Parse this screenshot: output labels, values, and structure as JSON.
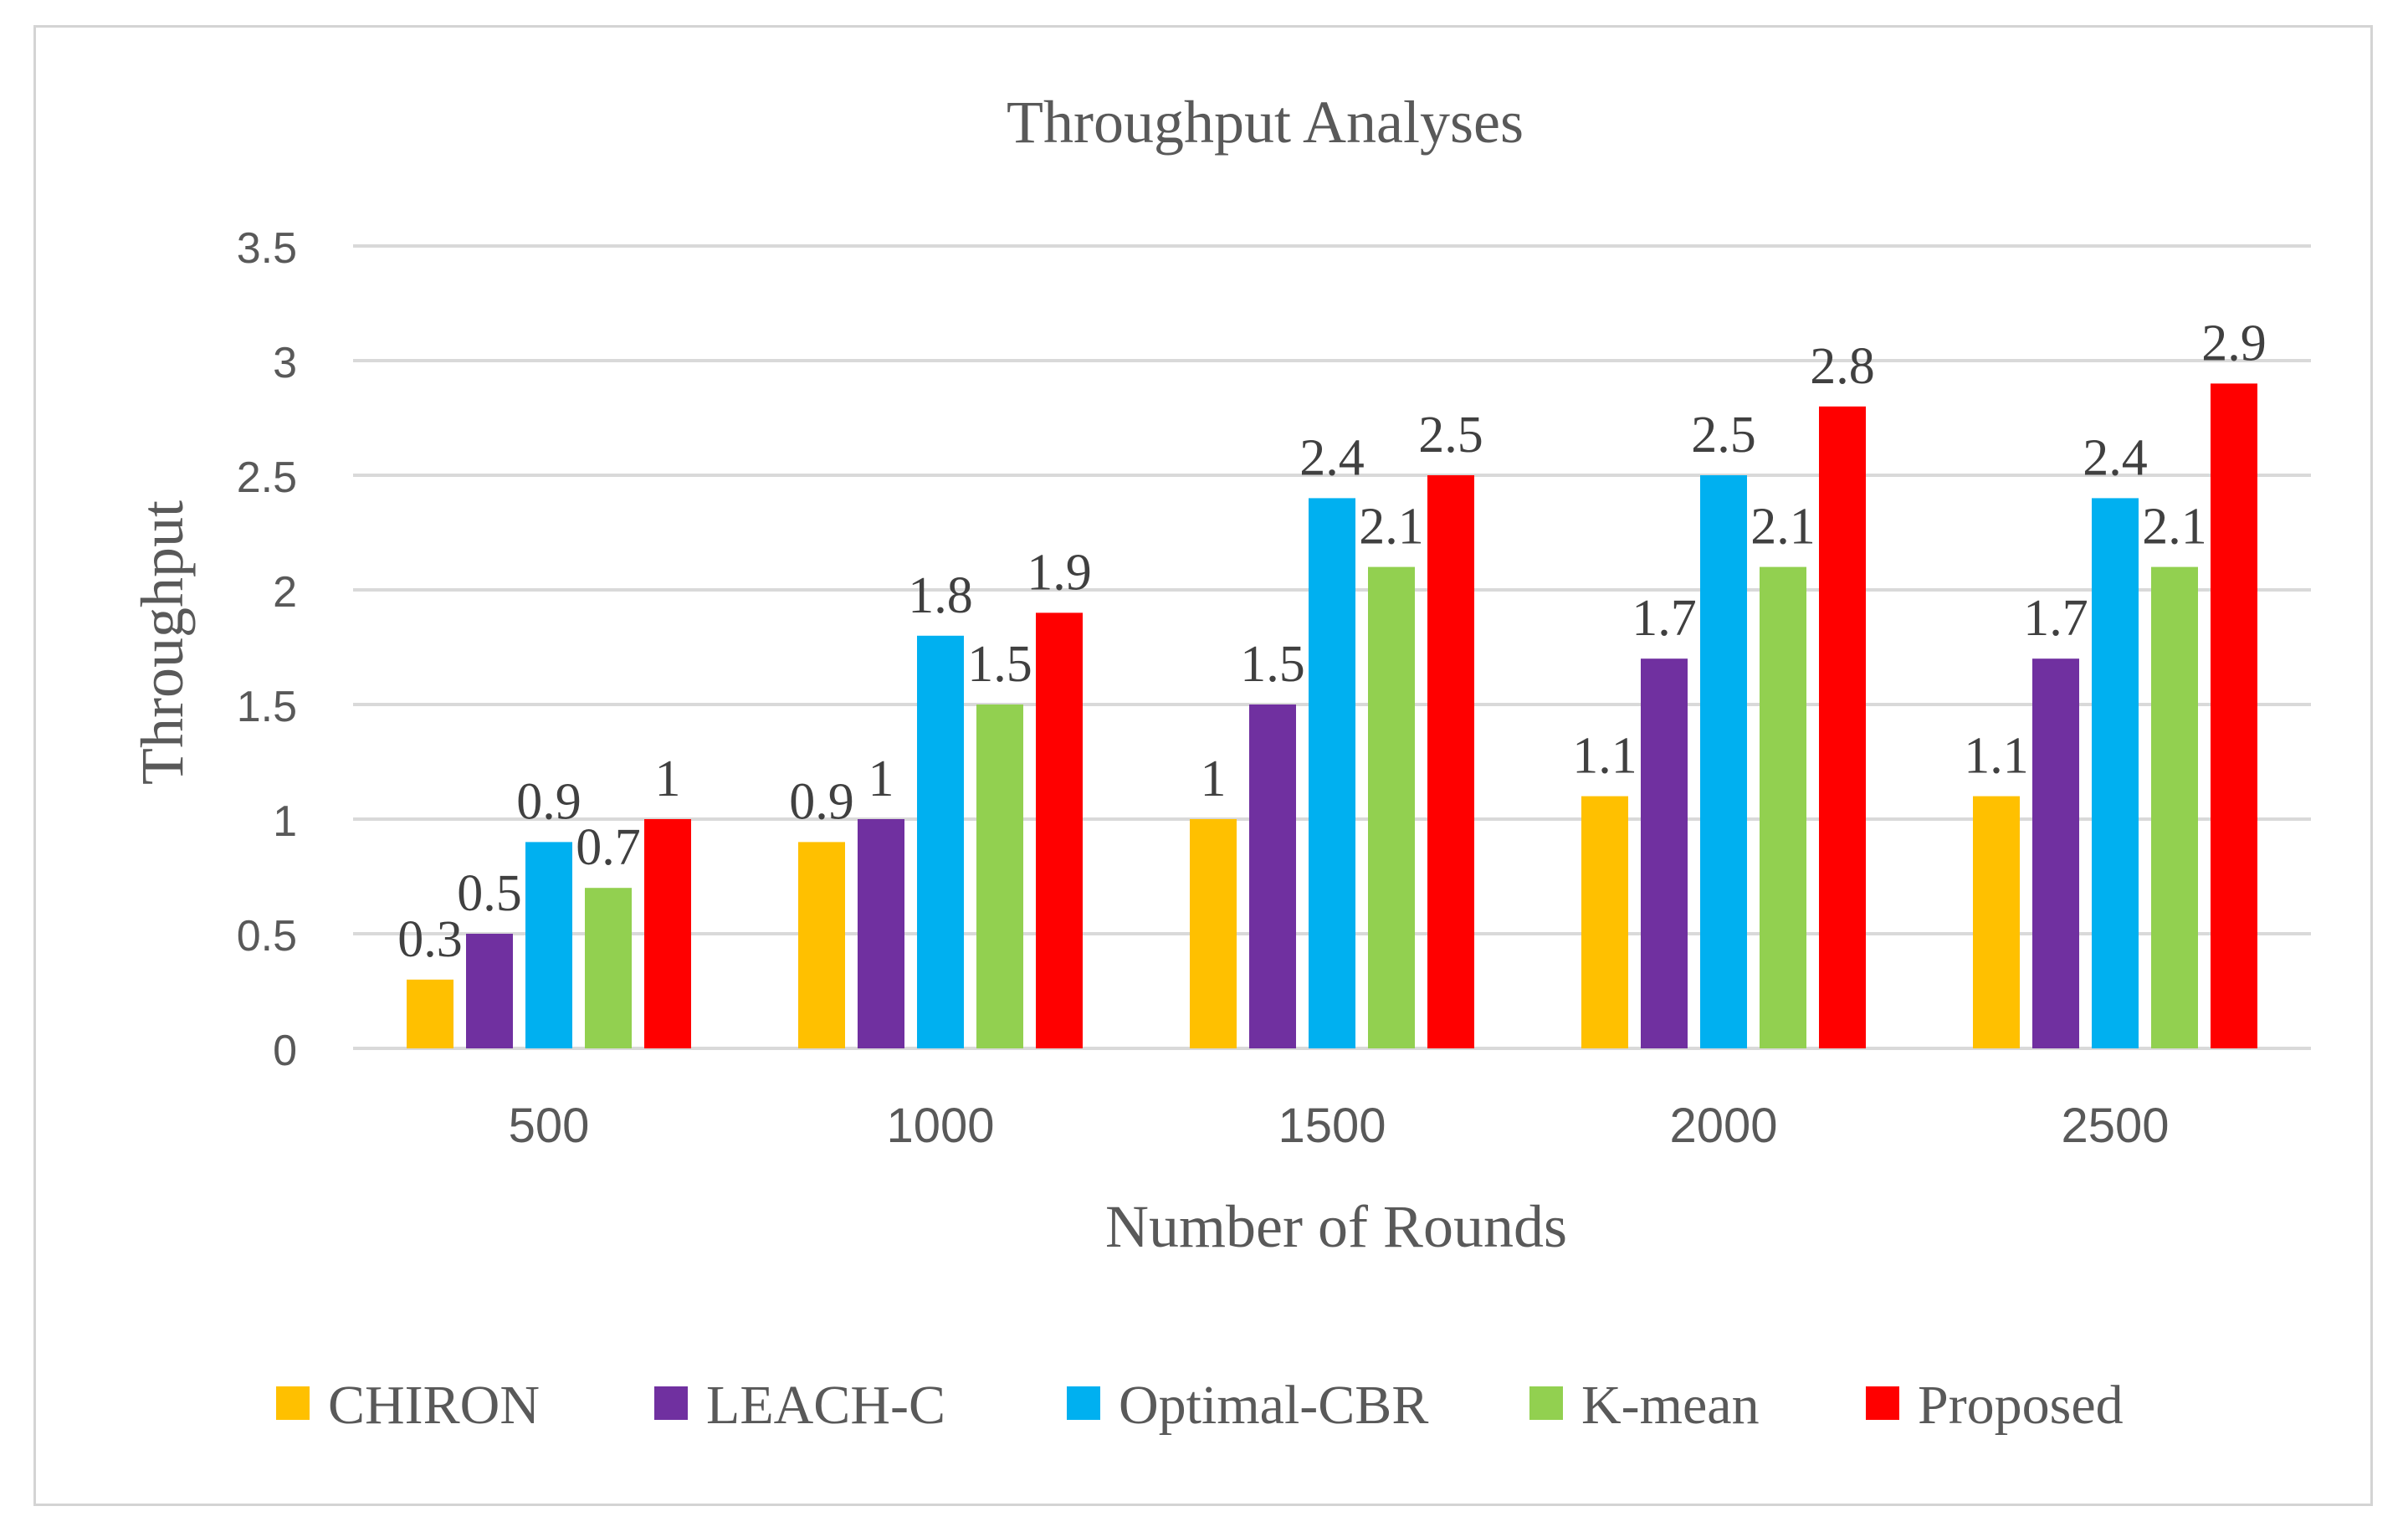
{
  "chart_data": {
    "type": "bar",
    "title": "Throughput Analyses",
    "xlabel": "Number of Rounds",
    "ylabel": "Throughput",
    "categories": [
      "500",
      "1000",
      "1500",
      "2000",
      "2500"
    ],
    "ylim": [
      0,
      3.5
    ],
    "yticks": [
      "0",
      "0.5",
      "1",
      "1.5",
      "2",
      "2.5",
      "3",
      "3.5"
    ],
    "grid": true,
    "legend_position": "bottom",
    "series": [
      {
        "name": "CHIRON",
        "color": "#FFC000",
        "values": [
          0.3,
          0.9,
          1,
          1.1,
          1.1
        ],
        "labels": [
          "0.3",
          "0.9",
          "1",
          "1.1",
          "1.1"
        ]
      },
      {
        "name": "LEACH-C",
        "color": "#7030A0",
        "values": [
          0.5,
          1,
          1.5,
          1.7,
          1.7
        ],
        "labels": [
          "0.5",
          "1",
          "1.5",
          "1.7",
          "1.7"
        ]
      },
      {
        "name": "Optimal-CBR",
        "color": "#00B0F0",
        "values": [
          0.9,
          1.8,
          2.4,
          2.5,
          2.4
        ],
        "labels": [
          "0.9",
          "1.8",
          "2.4",
          "2.5",
          "2.4"
        ]
      },
      {
        "name": "K-mean",
        "color": "#92D050",
        "values": [
          0.7,
          1.5,
          2.1,
          2.1,
          2.1
        ],
        "labels": [
          "0.7",
          "1.5",
          "2.1",
          "2.1",
          "2.1"
        ]
      },
      {
        "name": "Proposed",
        "color": "#FF0000",
        "values": [
          1,
          1.9,
          2.5,
          2.8,
          2.9
        ],
        "labels": [
          "1",
          "1.9",
          "2.5",
          "2.8",
          "2.9"
        ]
      }
    ]
  }
}
